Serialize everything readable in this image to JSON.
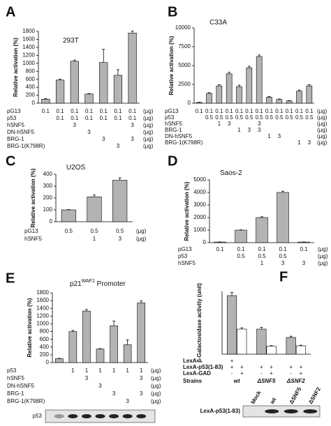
{
  "chart_data": [
    {
      "panel_label": "A",
      "type": "bar",
      "title": "293T",
      "ylabel": "Relative activation (%)",
      "color": "#b3b3b3",
      "values": [
        100,
        580,
        1050,
        230,
        1020,
        700,
        1760
      ],
      "errors": [
        15,
        20,
        30,
        10,
        330,
        140,
        50
      ],
      "ylim": [
        0,
        1800
      ],
      "yticks": [
        0,
        200,
        400,
        600,
        800,
        1000,
        1200,
        1400,
        1600,
        1800
      ],
      "rows": [
        {
          "label": "pG13",
          "cells": [
            0.1,
            0.1,
            0.1,
            0.1,
            0.1,
            0.1,
            0.1
          ],
          "unit": "(μg)"
        },
        {
          "label": "p53",
          "cells": [
            null,
            0.1,
            0.1,
            0.1,
            0.1,
            0.1,
            0.1
          ],
          "unit": "(μg)"
        },
        {
          "label": "hSNF5",
          "cells": [
            null,
            null,
            3,
            null,
            null,
            null,
            3
          ],
          "unit": "(μg)"
        },
        {
          "label": "DN-hSNF5",
          "cells": [
            null,
            null,
            null,
            3,
            null,
            null,
            null
          ],
          "unit": "(μg)"
        },
        {
          "label": "BRG-1",
          "cells": [
            null,
            null,
            null,
            null,
            3,
            null,
            3
          ],
          "unit": "(μg)"
        },
        {
          "label": "BRG-1(K798R)",
          "cells": [
            null,
            null,
            null,
            null,
            null,
            3,
            null
          ],
          "unit": "(μg)"
        }
      ]
    },
    {
      "panel_label": "B",
      "type": "bar",
      "title": "C33A",
      "ylabel": "Relative activation (%)",
      "color": "#b3b3b3",
      "values": [
        100,
        1300,
        2300,
        3900,
        2200,
        4700,
        6200,
        800,
        500,
        300,
        1600,
        2300
      ],
      "errors": [
        30,
        100,
        150,
        200,
        200,
        200,
        200,
        100,
        60,
        40,
        150,
        150
      ],
      "ylim": [
        0,
        10000
      ],
      "yticks": [
        0,
        2500,
        5000,
        7500,
        10000
      ],
      "rows": [
        {
          "label": "pG13",
          "cells": [
            0.1,
            0.1,
            0.1,
            0.1,
            0.1,
            0.1,
            0.1,
            0.1,
            0.1,
            0.1,
            0.1,
            0.1
          ],
          "unit": "(μg)"
        },
        {
          "label": "p53",
          "cells": [
            null,
            0.5,
            0.5,
            0.5,
            0.5,
            0.5,
            0.5,
            0.5,
            0.5,
            0.5,
            0.5,
            0.5
          ],
          "unit": "(μg)"
        },
        {
          "label": "hSNF5",
          "cells": [
            null,
            null,
            1,
            3,
            null,
            null,
            3,
            null,
            null,
            null,
            null,
            null
          ],
          "unit": "(μg)"
        },
        {
          "label": "BRG-1",
          "cells": [
            null,
            null,
            null,
            null,
            1,
            3,
            3,
            null,
            null,
            null,
            null,
            null
          ],
          "unit": "(μg)"
        },
        {
          "label": "DN-hSNF5",
          "cells": [
            null,
            null,
            null,
            null,
            null,
            null,
            null,
            1,
            3,
            null,
            null,
            null
          ],
          "unit": "(μg)"
        },
        {
          "label": "BRG-1(K798R)",
          "cells": [
            null,
            null,
            null,
            null,
            null,
            null,
            null,
            null,
            null,
            null,
            1,
            3
          ],
          "unit": "(μg)"
        }
      ]
    },
    {
      "panel_label": "C",
      "type": "bar",
      "title": "U2OS",
      "ylabel": "Relative activation (%)",
      "color": "#b3b3b3",
      "values": [
        100,
        210,
        350
      ],
      "errors": [
        3,
        15,
        20
      ],
      "ylim": [
        0,
        400
      ],
      "yticks": [
        0,
        100,
        200,
        300,
        400
      ],
      "rows": [
        {
          "label": "pG13",
          "cells": [
            0.5,
            0.5,
            0.5
          ],
          "unit": "(μg)"
        },
        {
          "label": "hSNF5",
          "cells": [
            null,
            1,
            3
          ],
          "unit": "(μg)"
        }
      ]
    },
    {
      "panel_label": "D",
      "type": "bar",
      "title": "Saos-2",
      "ylabel": "Relative activation (%)",
      "color": "#b3b3b3",
      "values": [
        50,
        1000,
        2000,
        4000,
        50
      ],
      "errors": [
        10,
        20,
        60,
        100,
        10
      ],
      "ylim": [
        0,
        5000
      ],
      "yticks": [
        0,
        1000,
        2000,
        3000,
        4000,
        5000
      ],
      "rows": [
        {
          "label": "pG13",
          "cells": [
            0.1,
            0.1,
            0.1,
            0.1,
            0.1
          ],
          "unit": "(μg)"
        },
        {
          "label": "p53",
          "cells": [
            null,
            0.5,
            0.5,
            0.5,
            null
          ],
          "unit": "(μg)"
        },
        {
          "label": "hSNF5",
          "cells": [
            null,
            null,
            1,
            3,
            3
          ],
          "unit": "(μg)"
        }
      ]
    },
    {
      "panel_label": "E",
      "type": "bar",
      "title": "p21",
      "title_sup": "WAF1",
      "title_rest": " Promoter",
      "ylabel": "Relative activation (%)",
      "color": "#b3b3b3",
      "values": [
        100,
        800,
        1330,
        350,
        950,
        460,
        1540
      ],
      "errors": [
        10,
        30,
        40,
        10,
        120,
        130,
        50
      ],
      "ylim": [
        0,
        1800
      ],
      "yticks": [
        0,
        200,
        400,
        600,
        800,
        1000,
        1200,
        1400,
        1600,
        1800
      ],
      "rows": [
        {
          "label": "p53",
          "cells": [
            null,
            1,
            1,
            1,
            1,
            1,
            1
          ],
          "unit": "(μg)"
        },
        {
          "label": "hSNF5",
          "cells": [
            null,
            null,
            3,
            null,
            null,
            null,
            3
          ],
          "unit": "(μg)"
        },
        {
          "label": "DN-hSNF5",
          "cells": [
            null,
            null,
            null,
            3,
            null,
            null,
            null
          ],
          "unit": "(μg)"
        },
        {
          "label": "BRG-1",
          "cells": [
            null,
            null,
            null,
            null,
            3,
            null,
            3
          ],
          "unit": "(μg)"
        },
        {
          "label": "BRG-1(K798R)",
          "cells": [
            null,
            null,
            null,
            null,
            null,
            3,
            null
          ],
          "unit": "(μg)"
        }
      ],
      "blot_label": "p53"
    },
    {
      "panel_label": "F",
      "type": "grouped_bar",
      "ylabel": "β-Galactosidase activity (unit)",
      "ylim": [
        0,
        3000
      ],
      "series": [
        {
          "color": "#b3b3b3",
          "values": [
            2800,
            1200,
            800
          ],
          "errors": [
            150,
            80,
            60
          ]
        },
        {
          "color": "#ffffff",
          "values": [
            1200,
            380,
            400
          ],
          "errors": [
            60,
            30,
            30
          ]
        }
      ],
      "rows": [
        {
          "label": "LexA",
          "cells": [
            "+",
            null,
            null,
            null,
            null,
            null
          ]
        },
        {
          "label": "LexA-p53(1-83)",
          "cells": [
            "+",
            "+",
            "+",
            "+",
            "+",
            "+"
          ]
        },
        {
          "label": "LexA-GAD",
          "cells": [
            "-",
            "+",
            "-",
            "+",
            "-",
            "+"
          ]
        }
      ],
      "strains_label": "Strains",
      "strains": [
        "wt",
        "ΔSNF5",
        "ΔSNF2"
      ],
      "blot_lanes": [
        "Mock",
        "wt",
        "ΔSNF5",
        "ΔSNF2"
      ],
      "blot_label": "LexA-p53(1-83)"
    }
  ]
}
